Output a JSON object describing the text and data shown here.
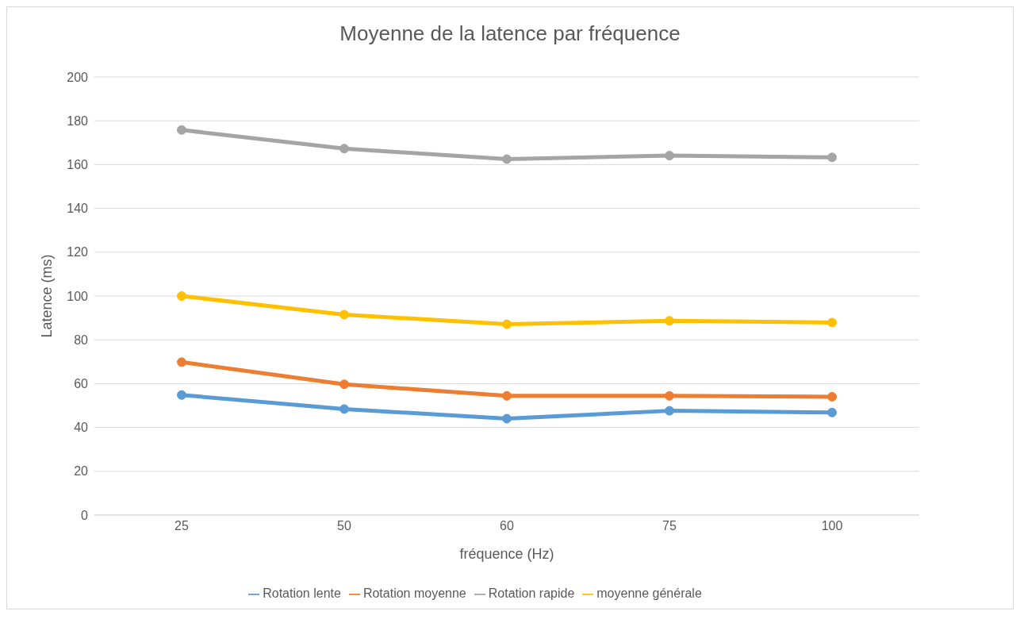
{
  "chart_data": {
    "type": "line",
    "title": "Moyenne de la latence par fréquence",
    "xlabel": "fréquence (Hz)",
    "ylabel": "Latence (ms)",
    "categories": [
      "25",
      "50",
      "60",
      "75",
      "100"
    ],
    "series": [
      {
        "name": "Rotation lente",
        "color": "#5b9bd5",
        "values": [
          54.8,
          48.4,
          44,
          47.6,
          46.8
        ]
      },
      {
        "name": "Rotation moyenne",
        "color": "#ed7d31",
        "values": [
          69.8,
          59.7,
          54.4,
          54.4,
          54
        ]
      },
      {
        "name": "Rotation rapide",
        "color": "#a5a5a5",
        "values": [
          175.8,
          167.3,
          162.5,
          164.1,
          163.3
        ]
      },
      {
        "name": "moyenne générale",
        "color": "#ffc000",
        "values": [
          100,
          91.5,
          87.1,
          88.7,
          87.9
        ]
      }
    ],
    "ylim": [
      0,
      200
    ],
    "yticks": [
      0,
      20,
      40,
      60,
      80,
      100,
      120,
      140,
      160,
      180,
      200
    ],
    "grid": "y",
    "legend": "bottom",
    "marker": "circle",
    "line_style": "solid"
  }
}
